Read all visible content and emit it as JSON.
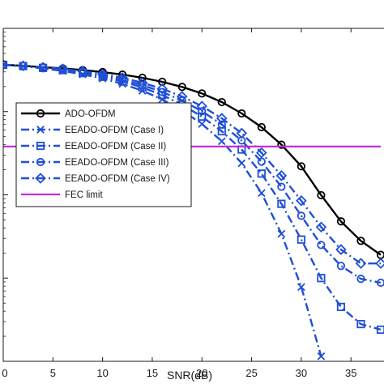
{
  "chart_data": {
    "type": "line",
    "xlabel": "SNR(dB)",
    "ylabel": "",
    "xlim": [
      0,
      39
    ],
    "log_y": true,
    "ylim": [
      1e-05,
      0.1
    ],
    "x_ticks": [
      0,
      5,
      10,
      15,
      20,
      25,
      30,
      35
    ],
    "x_tick_labels": [
      "0",
      "5",
      "10",
      "15",
      "20",
      "25",
      "30",
      "35"
    ],
    "grid": false,
    "legend_position": "top-left",
    "x": [
      0,
      2,
      4,
      6,
      8,
      10,
      12,
      14,
      16,
      18,
      20,
      22,
      24,
      26,
      28,
      30,
      32,
      34,
      36,
      38
    ],
    "series": [
      {
        "name": "ADO-OFDM",
        "color": "#000000",
        "linestyle": "solid",
        "marker": "circle",
        "values": [
          0.0365,
          0.0355,
          0.0342,
          0.033,
          0.0315,
          0.0298,
          0.0278,
          0.0255,
          0.0228,
          0.0198,
          0.0165,
          0.013,
          0.0095,
          0.0065,
          0.004,
          0.0022,
          0.00099,
          0.00048,
          0.00028,
          0.00019
        ]
      },
      {
        "name": "EEADO-OFDM (Case I)",
        "color": "#1f4fd6",
        "linestyle": "dashdot",
        "marker": "x",
        "values": [
          0.0365,
          0.035,
          0.033,
          0.0308,
          0.028,
          0.025,
          0.0215,
          0.0178,
          0.014,
          0.0103,
          0.0071,
          0.0044,
          0.0024,
          0.00105,
          0.00034,
          7.8e-05,
          1.15e-05,
          null,
          null,
          null
        ]
      },
      {
        "name": "EEADO-OFDM (Case II)",
        "color": "#1f4fd6",
        "linestyle": "dashdot",
        "marker": "square",
        "values": [
          0.0365,
          0.0352,
          0.0335,
          0.0315,
          0.029,
          0.0262,
          0.023,
          0.0195,
          0.0158,
          0.0121,
          0.0087,
          0.0058,
          0.0035,
          0.0018,
          0.00078,
          0.00029,
          0.0001,
          4.5e-05,
          2.8e-05,
          2.4e-05
        ]
      },
      {
        "name": "EEADO-OFDM (Case III)",
        "color": "#1f4fd6",
        "linestyle": "dashdot",
        "marker": "circle",
        "values": [
          0.0365,
          0.0354,
          0.0338,
          0.0321,
          0.0298,
          0.0272,
          0.0242,
          0.0208,
          0.0172,
          0.0136,
          0.0101,
          0.007,
          0.0045,
          0.0025,
          0.00125,
          0.00056,
          0.00025,
          0.00014,
          9.8e-05,
          8.8e-05
        ]
      },
      {
        "name": "EEADO-OFDM (Case IV)",
        "color": "#1f4fd6",
        "linestyle": "dashdot",
        "marker": "diamond",
        "values": [
          0.0365,
          0.0355,
          0.034,
          0.0325,
          0.0305,
          0.0282,
          0.0255,
          0.0222,
          0.0188,
          0.0152,
          0.0116,
          0.0083,
          0.0055,
          0.0032,
          0.0017,
          0.00085,
          0.00041,
          0.00022,
          0.00015,
          0.00015
        ]
      },
      {
        "name": "FEC limit",
        "color": "#c030d8",
        "linestyle": "solid",
        "marker": "none",
        "values": [
          0.0038,
          0.0038,
          0.0038,
          0.0038,
          0.0038,
          0.0038,
          0.0038,
          0.0038,
          0.0038,
          0.0038,
          0.0038,
          0.0038,
          0.0038,
          0.0038,
          0.0038,
          0.0038,
          0.0038,
          0.0038,
          0.0038,
          0.0038
        ]
      }
    ]
  }
}
